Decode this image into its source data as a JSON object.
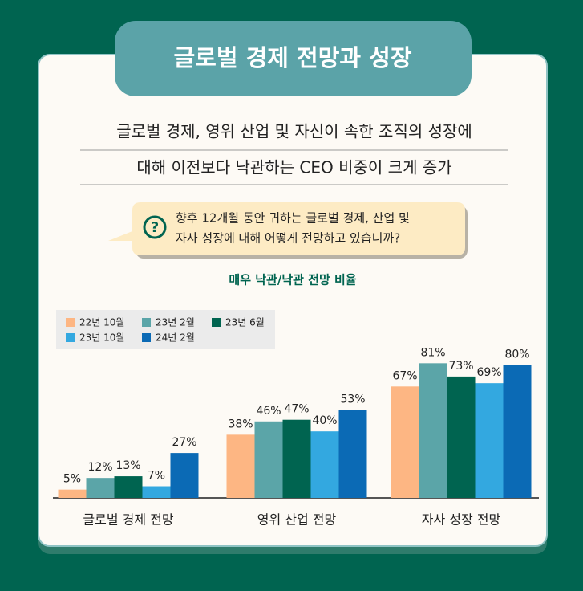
{
  "header": {
    "title": "글로벌 경제 전망과 성장"
  },
  "headline": [
    "글로벌 경제, 영위 산업 및 자신이 속한 조직의 성장에",
    "대해 이전보다 낙관하는 CEO 비중이 크게 증가"
  ],
  "question": {
    "icon": "?",
    "lines": [
      "향후 12개월 동안 귀하는 글로벌 경제, 산업 및",
      "자사 성장에 대해 어떻게 전망하고 있습니까?"
    ]
  },
  "chart_data": {
    "type": "bar",
    "title": "매우 낙관/낙관 전망 비율",
    "categories": [
      "글로벌 경제 전망",
      "영위 산업 전망",
      "자사 성장 전망"
    ],
    "series": [
      {
        "name": "22년 10월",
        "color": "#fdb683",
        "values": [
          5,
          38,
          67
        ],
        "value_labels": [
          "5%",
          "38%",
          "67%"
        ]
      },
      {
        "name": "23년 2월",
        "color": "#5ba5a8",
        "values": [
          12,
          46,
          81
        ],
        "value_labels": [
          "12%",
          "46%",
          "81%"
        ]
      },
      {
        "name": "23년 6월",
        "color": "#006450",
        "values": [
          13,
          47,
          73
        ],
        "value_labels": [
          "13%",
          "47%",
          "73%"
        ]
      },
      {
        "name": "23년 10월",
        "color": "#33a8e0",
        "values": [
          7,
          40,
          69
        ],
        "value_labels": [
          "7%",
          "40%",
          "69%"
        ]
      },
      {
        "name": "24년 2월",
        "color": "#0b6ab5",
        "values": [
          27,
          53,
          80
        ],
        "value_labels": [
          "27%",
          "53%",
          "80%"
        ]
      }
    ]
  }
}
